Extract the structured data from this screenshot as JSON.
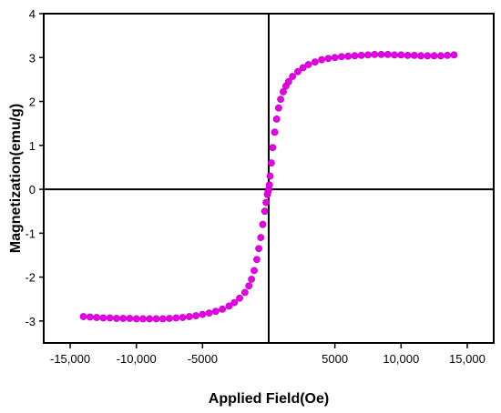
{
  "chart_data": {
    "type": "scatter",
    "title": "",
    "xlabel": "Applied Field(Oe)",
    "ylabel": "Magnetization(emu/g)",
    "xlim": [
      -17000,
      17000
    ],
    "ylim": [
      -3.5,
      4
    ],
    "grid": false,
    "legend": "none",
    "marker_color": "#e800e8",
    "x_ticks": [
      {
        "value": -15000,
        "label": "-15,000"
      },
      {
        "value": -10000,
        "label": "-10,000"
      },
      {
        "value": -5000,
        "label": "-5000"
      },
      {
        "value": 5000,
        "label": "5000"
      },
      {
        "value": 10000,
        "label": "10,000"
      },
      {
        "value": 15000,
        "label": "15,000"
      }
    ],
    "y_ticks": [
      {
        "value": -3,
        "label": "-3"
      },
      {
        "value": -2,
        "label": "-2"
      },
      {
        "value": -1,
        "label": "-1"
      },
      {
        "value": 0,
        "label": "0"
      },
      {
        "value": 1,
        "label": "1"
      },
      {
        "value": 2,
        "label": "2"
      },
      {
        "value": 3,
        "label": "3"
      },
      {
        "value": 4,
        "label": "4"
      }
    ],
    "reference_lines": {
      "x": 0,
      "y": 0
    },
    "series": [
      {
        "x": [
          -14000,
          -13500,
          -13000,
          -12500,
          -12000,
          -11500,
          -11000,
          -10500,
          -10000,
          -9500,
          -9000,
          -8500,
          -8000,
          -7500,
          -7000,
          -6500,
          -6000,
          -5500,
          -5000,
          -4500,
          -4000,
          -3500,
          -3000,
          -2600,
          -2200,
          -1800,
          -1500,
          -1300,
          -1100,
          -900,
          -750,
          -600,
          -450,
          -300,
          -200,
          -100,
          -50,
          0,
          50,
          100,
          200,
          300,
          450,
          600,
          750,
          900,
          1100,
          1300,
          1500,
          1800,
          2200,
          2600,
          3000,
          3500,
          4000,
          4500,
          5000,
          5500,
          6000,
          6500,
          7000,
          7500,
          8000,
          8500,
          9000,
          9500,
          10000,
          10500,
          11000,
          11500,
          12000,
          12500,
          13000,
          13500,
          14000
        ],
        "y": [
          -2.9,
          -2.91,
          -2.92,
          -2.93,
          -2.93,
          -2.94,
          -2.94,
          -2.94,
          -2.95,
          -2.95,
          -2.95,
          -2.95,
          -2.95,
          -2.94,
          -2.93,
          -2.92,
          -2.9,
          -2.88,
          -2.85,
          -2.82,
          -2.78,
          -2.73,
          -2.66,
          -2.58,
          -2.48,
          -2.35,
          -2.2,
          -2.05,
          -1.85,
          -1.6,
          -1.35,
          -1.1,
          -0.8,
          -0.5,
          -0.3,
          -0.12,
          -0.05,
          0.0,
          0.1,
          0.3,
          0.6,
          0.95,
          1.3,
          1.6,
          1.85,
          2.05,
          2.22,
          2.35,
          2.45,
          2.57,
          2.68,
          2.77,
          2.84,
          2.9,
          2.95,
          2.98,
          3.0,
          3.02,
          3.03,
          3.04,
          3.05,
          3.06,
          3.07,
          3.07,
          3.07,
          3.06,
          3.06,
          3.05,
          3.05,
          3.04,
          3.04,
          3.04,
          3.04,
          3.05,
          3.06
        ]
      }
    ]
  }
}
